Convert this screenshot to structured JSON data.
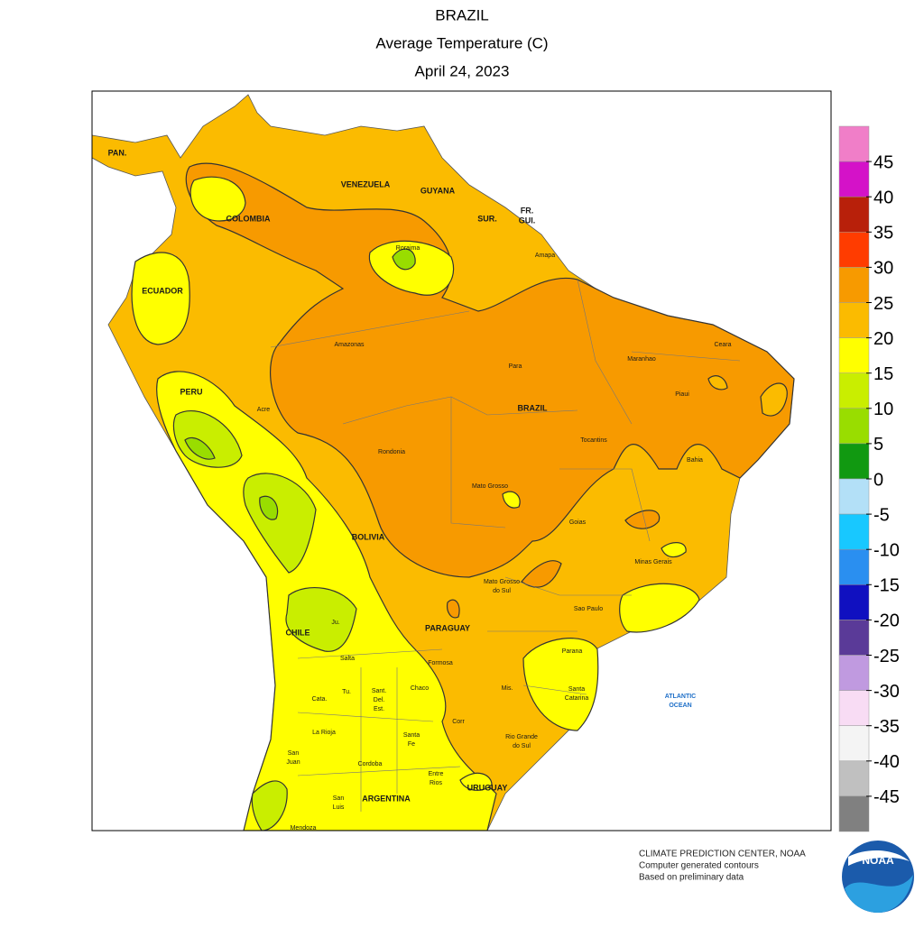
{
  "header": {
    "title": "BRAZIL",
    "subtitle": "Average Temperature (C)",
    "date": "April 24, 2023"
  },
  "legend": {
    "colors": [
      "#f07ec8",
      "#d412c8",
      "#b8200a",
      "#ff3c00",
      "#f79a00",
      "#fbbb00",
      "#ffff00",
      "#c9ee00",
      "#99dd00",
      "#119911",
      "#b3e0f7",
      "#18c8ff",
      "#2a8ff0",
      "#1010c0",
      "#5a3a98",
      "#c09ae0",
      "#f8dcf4",
      "#f4f4f4",
      "#c0c0c0",
      "#808080"
    ],
    "ticks": [
      45,
      40,
      35,
      30,
      25,
      20,
      15,
      10,
      5,
      0,
      -5,
      -10,
      -15,
      -20,
      -25,
      -30,
      -35,
      -40,
      -45
    ]
  },
  "labels": [
    {
      "lines": [
        "PAN."
      ]
    },
    {
      "lines": [
        "VENEZUELA"
      ]
    },
    {
      "lines": [
        "GUYANA"
      ]
    },
    {
      "lines": [
        "SUR."
      ]
    },
    {
      "lines": [
        "FR.",
        "GUI."
      ]
    },
    {
      "lines": [
        "COLOMBIA"
      ]
    },
    {
      "lines": [
        "Roraima"
      ]
    },
    {
      "lines": [
        "Amapa"
      ]
    },
    {
      "lines": [
        "ECUADOR"
      ]
    },
    {
      "lines": [
        "Amazonas"
      ]
    },
    {
      "lines": [
        "Para"
      ]
    },
    {
      "lines": [
        "Maranhao"
      ]
    },
    {
      "lines": [
        "Ceara"
      ]
    },
    {
      "lines": [
        "Piaui"
      ]
    },
    {
      "lines": [
        "BRAZIL"
      ]
    },
    {
      "lines": [
        "PERU"
      ]
    },
    {
      "lines": [
        "Acre"
      ]
    },
    {
      "lines": [
        "Rondonia"
      ]
    },
    {
      "lines": [
        "Tocantins"
      ]
    },
    {
      "lines": [
        "Bahia"
      ]
    },
    {
      "lines": [
        "Mato Grosso"
      ]
    },
    {
      "lines": [
        "Goias"
      ]
    },
    {
      "lines": [
        "Minas Gerais"
      ]
    },
    {
      "lines": [
        "BOLIVIA"
      ]
    },
    {
      "lines": [
        "Mato Grosso",
        "do Sul"
      ]
    },
    {
      "lines": [
        "Sao Paulo"
      ]
    },
    {
      "lines": [
        "PARAGUAY"
      ]
    },
    {
      "lines": [
        "CHILE"
      ]
    },
    {
      "lines": [
        "Ju."
      ]
    },
    {
      "lines": [
        "Salta"
      ]
    },
    {
      "lines": [
        "Formosa"
      ]
    },
    {
      "lines": [
        "Tu."
      ]
    },
    {
      "lines": [
        "Sant.",
        "Del.",
        "Est."
      ]
    },
    {
      "lines": [
        "Chaco"
      ]
    },
    {
      "lines": [
        "Cata."
      ]
    },
    {
      "lines": [
        "La Rioja"
      ]
    },
    {
      "lines": [
        "Santa",
        "Fe"
      ]
    },
    {
      "lines": [
        "Corr"
      ]
    },
    {
      "lines": [
        "Mis."
      ]
    },
    {
      "lines": [
        "Parana"
      ]
    },
    {
      "lines": [
        "Santa",
        "Catarina"
      ]
    },
    {
      "lines": [
        "Rio Grande",
        "do Sul"
      ]
    },
    {
      "lines": [
        "San",
        "Juan"
      ]
    },
    {
      "lines": [
        "Cordoba"
      ]
    },
    {
      "lines": [
        "Entre",
        "Rios"
      ]
    },
    {
      "lines": [
        "San",
        "Luis"
      ]
    },
    {
      "lines": [
        "ARGENTINA"
      ]
    },
    {
      "lines": [
        "URUGUAY"
      ]
    },
    {
      "lines": [
        "Mendoza"
      ]
    },
    {
      "lines": [
        "ATLANTIC",
        "OCEAN"
      ]
    }
  ],
  "footer": {
    "lines": [
      "CLIMATE PREDICTION CENTER, NOAA",
      "Computer generated contours",
      "Based on preliminary data"
    ],
    "logo": "NOAA"
  }
}
